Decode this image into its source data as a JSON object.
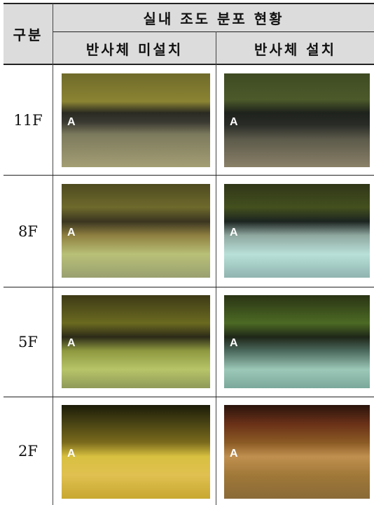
{
  "header": {
    "category": "구분",
    "title": "실내 조도 분포 현황",
    "columns": [
      "반사체 미설치",
      "반사체 설치"
    ]
  },
  "rows": [
    {
      "floor": "11F",
      "images": [
        {
          "label": "A"
        },
        {
          "label": "A"
        }
      ]
    },
    {
      "floor": "8F",
      "images": [
        {
          "label": "A"
        },
        {
          "label": "A"
        }
      ]
    },
    {
      "floor": "5F",
      "images": [
        {
          "label": "A"
        },
        {
          "label": "A"
        }
      ]
    },
    {
      "floor": "2F",
      "images": [
        {
          "label": "A"
        },
        {
          "label": "A"
        }
      ]
    }
  ]
}
